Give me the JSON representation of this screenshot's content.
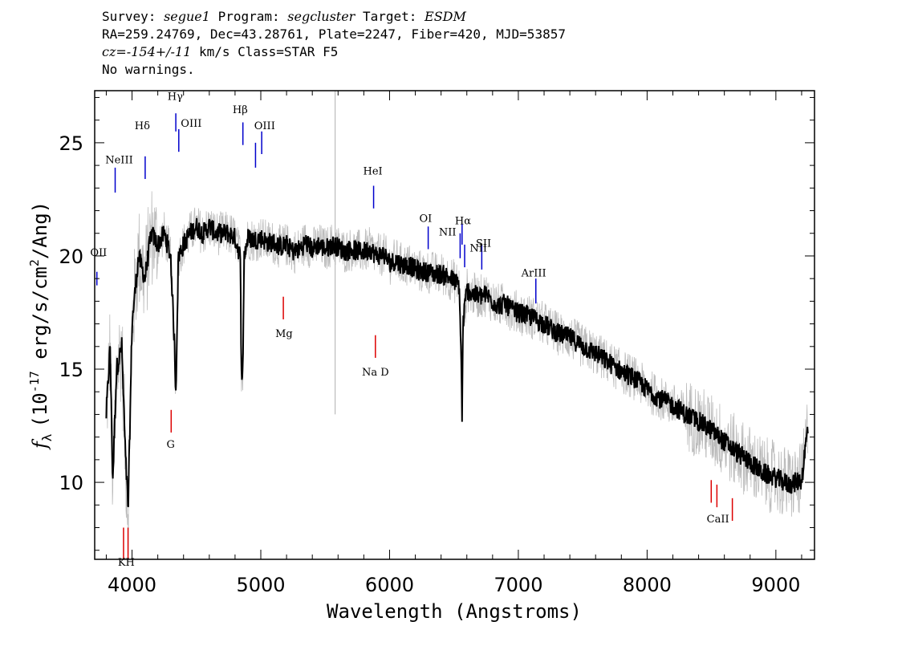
{
  "header": {
    "survey_label": "Survey: ",
    "survey": "segue1",
    "program_label": " Program: ",
    "program": "segcluster",
    "target_label": " Target: ",
    "target": "ESDM",
    "coords": "RA=259.24769, Dec=43.28761, Plate=2247, Fiber=420, MJD=53857",
    "cz_label": "cz=",
    "cz_value": "-154+/-11",
    "cz_rest": " km/s Class=STAR F5",
    "warnings": "No warnings."
  },
  "chart_data": {
    "type": "line",
    "xlabel": "Wavelength (Angstroms)",
    "ylabel_prefix": "f",
    "ylabel_sub": "λ",
    "ylabel_main": "(10",
    "ylabel_exp": "-17",
    "ylabel_mid": " erg/s/cm",
    "ylabel_exp2": "2",
    "ylabel_end": "/Ang)",
    "xlim": [
      3710,
      9300
    ],
    "ylim": [
      6.6,
      27.3
    ],
    "x_ticks": [
      "4000",
      "5000",
      "6000",
      "7000",
      "8000",
      "9000"
    ],
    "y_ticks": [
      "10",
      "15",
      "20",
      "25"
    ],
    "series": [
      {
        "color": "#000000",
        "x": [
          3800,
          3830,
          3850,
          3880,
          3920,
          3950,
          3970,
          4000,
          4050,
          4100,
          4150,
          4200,
          4250,
          4300,
          4330,
          4340,
          4360,
          4400,
          4450,
          4500,
          4550,
          4600,
          4650,
          4700,
          4750,
          4800,
          4840,
          4850,
          4861,
          4870,
          4900,
          4950,
          5000,
          5050,
          5100,
          5150,
          5200,
          5250,
          5300,
          5350,
          5400,
          5450,
          5500,
          5550,
          5600,
          5650,
          5700,
          5750,
          5800,
          5850,
          5900,
          5950,
          6000,
          6050,
          6100,
          6150,
          6200,
          6250,
          6300,
          6350,
          6400,
          6450,
          6500,
          6540,
          6555,
          6563,
          6570,
          6600,
          6650,
          6700,
          6750,
          6800,
          6850,
          6900,
          6950,
          7000,
          7100,
          7200,
          7300,
          7400,
          7500,
          7600,
          7700,
          7800,
          7900,
          8000,
          8100,
          8200,
          8300,
          8400,
          8500,
          8600,
          8700,
          8800,
          8900,
          9000,
          9100,
          9200,
          9250
        ],
        "y": [
          13,
          16,
          10,
          15,
          16,
          11,
          8.8,
          17,
          20,
          19,
          21,
          20.5,
          21,
          20,
          16,
          14,
          20,
          20.5,
          21,
          21.3,
          21,
          21.3,
          21,
          21,
          21,
          20.8,
          20,
          15,
          14.8,
          20,
          20.8,
          20.7,
          20.8,
          20.6,
          20.6,
          20.4,
          20.5,
          20.2,
          20.3,
          20.6,
          20.3,
          20.5,
          20.3,
          20.5,
          20.4,
          20.2,
          20.3,
          20.2,
          20.2,
          20.3,
          20,
          20.1,
          19.7,
          19.8,
          19.6,
          19.6,
          19.4,
          19.3,
          19.3,
          19.2,
          19.2,
          19.1,
          18.9,
          18.7,
          16,
          12.7,
          17,
          18.5,
          18.3,
          18.2,
          18.3,
          18,
          17.8,
          17.9,
          17.6,
          17.5,
          17.3,
          17,
          16.6,
          16.4,
          16,
          15.7,
          15.3,
          14.9,
          14.6,
          14.1,
          13.7,
          13.4,
          13,
          12.7,
          12.3,
          11.8,
          11.3,
          10.9,
          10.4,
          10.2,
          9.9,
          10.1,
          12.5
        ]
      }
    ],
    "emission_lines": [
      "OII",
      "NeIII",
      "Hδ",
      "Hγ",
      "OIII",
      "Hβ",
      "OIII",
      "HeI",
      "OI",
      "NII",
      "Hα",
      "NII",
      "SII",
      "ArIII"
    ],
    "absorption_lines": [
      "K",
      "H",
      "G",
      "Mg",
      "Na D",
      "CaII"
    ],
    "colors": {
      "emission": "#0000cc",
      "absorption": "#dd0000",
      "flux": "#000000",
      "noise": "#bbbbbb"
    }
  }
}
